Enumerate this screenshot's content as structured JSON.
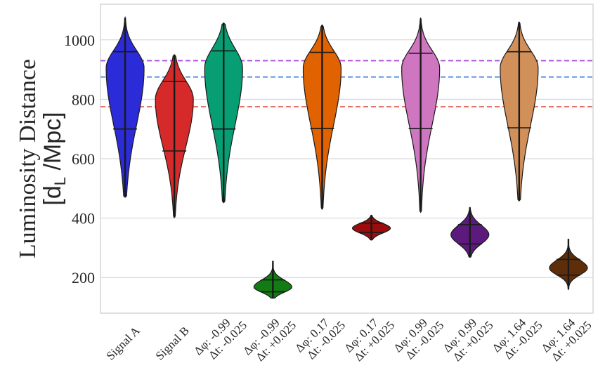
{
  "chart_data": {
    "type": "violin",
    "title": "",
    "xlabel": "",
    "ylabel": {
      "line1": "Luminosity Distance",
      "line2_open": "[d",
      "line2_sub": "L",
      "line2_close": " /Mpc]"
    },
    "ylim": [
      80,
      1120
    ],
    "yticks": [
      200,
      400,
      600,
      800,
      1000
    ],
    "grid": true,
    "categories": [
      {
        "line1": "Signal A",
        "line2": ""
      },
      {
        "line1": "Signal B",
        "line2": ""
      },
      {
        "line1": "Δφ: -0.99",
        "line2": "Δt: -0.025"
      },
      {
        "line1": "Δφ: -0.99",
        "line2": "Δt: +0.025"
      },
      {
        "line1": "Δφ: 0.17",
        "line2": "Δt: -0.025"
      },
      {
        "line1": "Δφ: 0.17",
        "line2": "Δt: +0.025"
      },
      {
        "line1": "Δφ: 0.99",
        "line2": "Δt: -0.025"
      },
      {
        "line1": "Δφ: 0.99",
        "line2": "Δt: +0.025"
      },
      {
        "line1": "Δφ: 1.64",
        "line2": "Δt: -0.025"
      },
      {
        "line1": "Δφ: 1.64",
        "line2": "Δt: +0.025"
      }
    ],
    "violins": [
      {
        "color": "#2b2bd8",
        "min": 470,
        "max": 1075,
        "q_low": 700,
        "q_high": 960,
        "mode": 905,
        "lower_tail": 600,
        "upper_tail": 1000
      },
      {
        "color": "#d62a2a",
        "min": 402,
        "max": 950,
        "q_low": 626,
        "q_high": 860,
        "mode": 800,
        "lower_tail": 545,
        "upper_tail": 900
      },
      {
        "color": "#069e72",
        "min": 452,
        "max": 1057,
        "q_low": 700,
        "q_high": 963,
        "mode": 905,
        "lower_tail": 600,
        "upper_tail": 1010
      },
      {
        "color": "#137b13",
        "min": 130,
        "max": 255,
        "q_low": 152,
        "q_high": 192,
        "mode": 168,
        "lower_tail": 140,
        "upper_tail": 205
      },
      {
        "color": "#e06200",
        "min": 430,
        "max": 1050,
        "q_low": 702,
        "q_high": 958,
        "mode": 905,
        "lower_tail": 600,
        "upper_tail": 1000
      },
      {
        "color": "#9b0d0d",
        "min": 326,
        "max": 410,
        "q_low": 352,
        "q_high": 383,
        "mode": 366,
        "lower_tail": 340,
        "upper_tail": 392
      },
      {
        "color": "#cf76c0",
        "min": 420,
        "max": 1072,
        "q_low": 702,
        "q_high": 955,
        "mode": 905,
        "lower_tail": 600,
        "upper_tail": 1000
      },
      {
        "color": "#5c1a7c",
        "min": 268,
        "max": 436,
        "q_low": 313,
        "q_high": 378,
        "mode": 344,
        "lower_tail": 295,
        "upper_tail": 395
      },
      {
        "color": "#d18f5a",
        "min": 458,
        "max": 1060,
        "q_low": 704,
        "q_high": 960,
        "mode": 905,
        "lower_tail": 600,
        "upper_tail": 1000
      },
      {
        "color": "#5e2e0a",
        "min": 160,
        "max": 330,
        "q_low": 208,
        "q_high": 261,
        "mode": 232,
        "lower_tail": 195,
        "upper_tail": 275
      }
    ],
    "reference_lines": [
      {
        "value": 930,
        "color": "#b050e0",
        "style": "dashed"
      },
      {
        "value": 875,
        "color": "#5b8fe8",
        "style": "dashed"
      },
      {
        "value": 775,
        "color": "#e8756a",
        "style": "dashed"
      }
    ]
  }
}
